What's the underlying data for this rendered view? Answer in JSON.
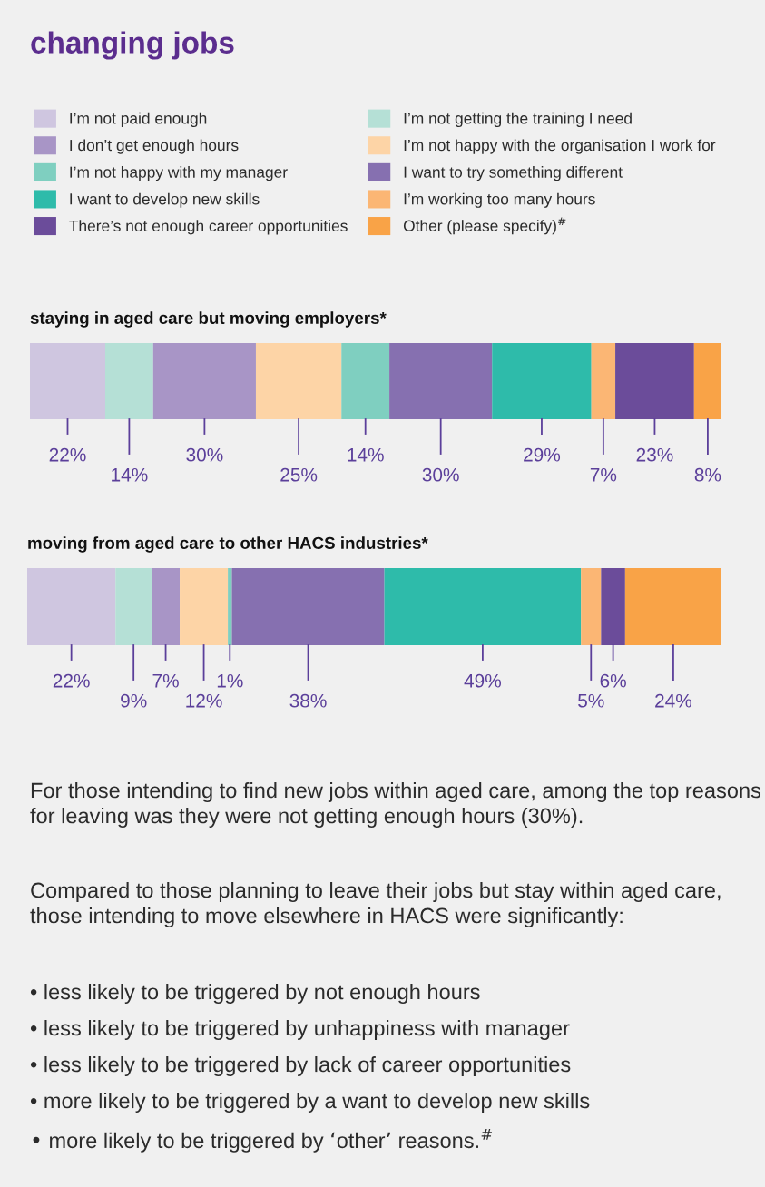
{
  "chart_data": [
    {
      "type": "bar",
      "orientation": "horizontal",
      "stacked": true,
      "title": "changing jobs",
      "subtitle": "staying in aged care but moving employers*",
      "categories": [
        null
      ],
      "tick_labels": false,
      "legend": "top",
      "series": [
        {
          "name": "I’m not paid enough",
          "color": "#cfc6e0",
          "values": [
            22
          ],
          "value_labels": [
            "22%"
          ]
        },
        {
          "name": "I’m not getting the training I need",
          "color": "#b5e0d6",
          "values": [
            14
          ],
          "value_labels": [
            "14%"
          ]
        },
        {
          "name": "I don’t get enough hours",
          "color": "#a895c6",
          "values": [
            30
          ],
          "value_labels": [
            "30%"
          ]
        },
        {
          "name": "I’m not happy with the organisation I work for",
          "color": "#fdd4a6",
          "values": [
            25
          ],
          "value_labels": [
            "25%"
          ]
        },
        {
          "name": "I’m not happy with my manager",
          "color": "#7fcfc0",
          "values": [
            14
          ],
          "value_labels": [
            "14%"
          ]
        },
        {
          "name": "I want to try something different",
          "color": "#8670b0",
          "values": [
            30
          ],
          "value_labels": [
            "30%"
          ]
        },
        {
          "name": "I want to develop new skills",
          "color": "#2ebbaa",
          "values": [
            29
          ],
          "value_labels": [
            "29%"
          ]
        },
        {
          "name": "I’m working too many hours",
          "color": "#fbb674",
          "values": [
            7
          ],
          "value_labels": [
            "7%"
          ]
        },
        {
          "name": "There’s not enough career opportunities",
          "color": "#6b4c9a",
          "values": [
            23
          ],
          "value_labels": [
            "23%"
          ]
        },
        {
          "name": "Other (please specify)$^{#}$",
          "color": "#f9a347",
          "values": [
            8
          ],
          "value_labels": [
            "8%"
          ]
        }
      ]
    },
    {
      "type": "bar",
      "orientation": "horizontal",
      "stacked": true,
      "title": "moving from aged care to other HACS industries*",
      "categories": [
        null
      ],
      "tick_labels": false,
      "series": [
        {
          "color": "#cfc6e0",
          "values": [
            22
          ],
          "value_labels": [
            "22%"
          ]
        },
        {
          "color": "#b5e0d6",
          "values": [
            9
          ],
          "value_labels": [
            "9%"
          ]
        },
        {
          "color": "#a895c6",
          "values": [
            7
          ],
          "value_labels": [
            "7%"
          ]
        },
        {
          "color": "#fdd4a6",
          "values": [
            12
          ],
          "value_labels": [
            "12%"
          ]
        },
        {
          "color": "#7fcfc0",
          "values": [
            1
          ],
          "value_labels": [
            "1%"
          ]
        },
        {
          "color": "#8670b0",
          "values": [
            38
          ],
          "value_labels": [
            "38%"
          ]
        },
        {
          "color": "#2ebbaa",
          "values": [
            49
          ],
          "value_labels": [
            "49%"
          ]
        },
        {
          "color": "#fbb674",
          "values": [
            5
          ],
          "value_labels": [
            "5%"
          ]
        },
        {
          "color": "#6b4c9a",
          "values": [
            6
          ],
          "value_labels": [
            "6%"
          ]
        },
        {
          "color": "#f9a347",
          "values": [
            24
          ],
          "value_labels": [
            "24%"
          ]
        }
      ],
      "annotations": [
        "For those intending to find new jobs within aged care, among the top reasons for leaving was they were not getting enough hours (30%).",
        "Compared to those planning to leave their jobs but stay within aged care, those intending to move elsewhere in HACS were significantly:",
        "• less likely to be triggered by not enough hours",
        "• less likely to be triggered by unhappiness with manager",
        "• less likely to be triggered by lack of career opportunities",
        "• more likely to be triggered by a want to develop new skills",
        "• more likely to be triggered by ‘other’ reasons.$^{#}$"
      ]
    }
  ]
}
